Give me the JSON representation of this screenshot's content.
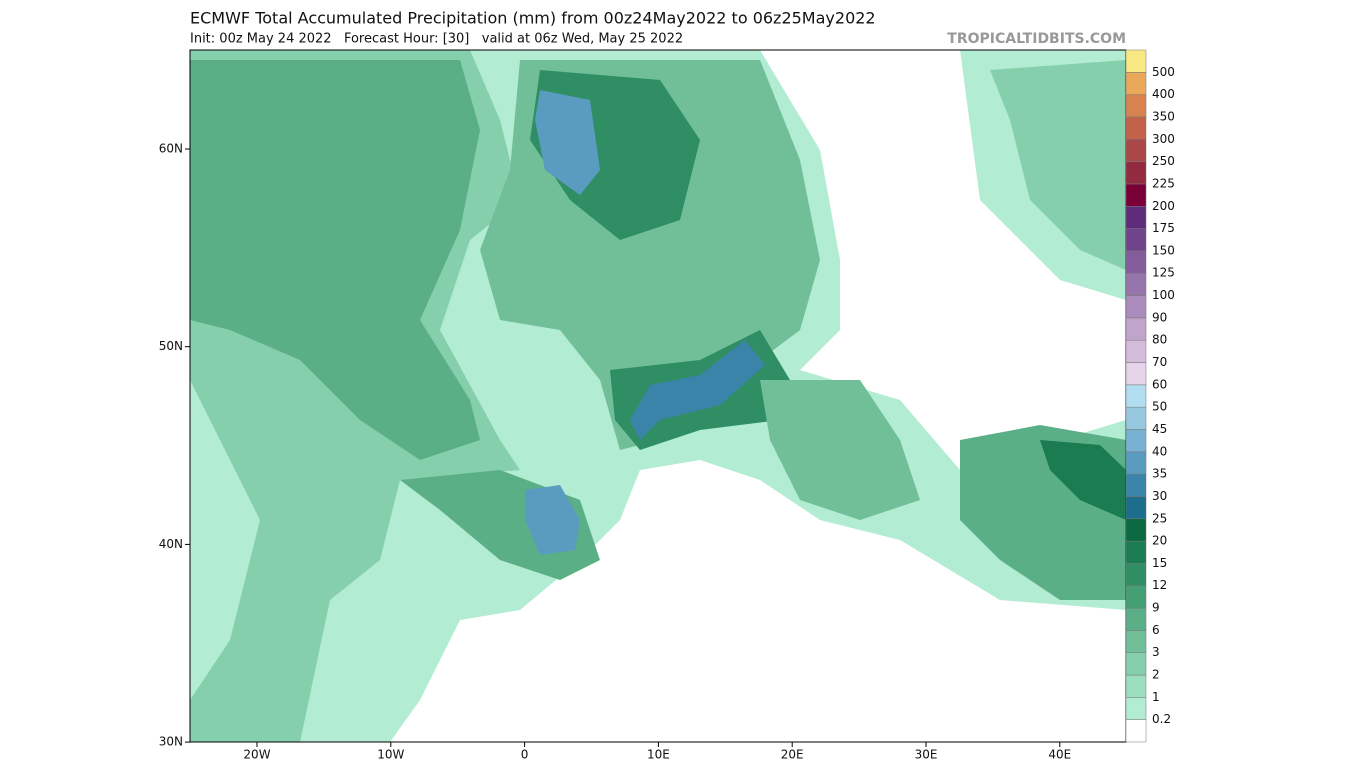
{
  "header": {
    "title": "ECMWF Total Accumulated Precipitation (mm) from 00z24May2022 to 06z25May2022",
    "subtitle": "Init: 00z May 24 2022   Forecast Hour: [30]   valid at 06z Wed, May 25 2022",
    "site": "TROPICALTIDBITS.COM"
  },
  "map": {
    "lat_labels": [
      "60N",
      "50N",
      "40N",
      "30N"
    ],
    "lon_labels": [
      "20W",
      "10W",
      "0",
      "10E",
      "20E",
      "30E",
      "40E"
    ]
  },
  "legend": {
    "levels": [
      "0.2",
      "1",
      "2",
      "3",
      "6",
      "9",
      "12",
      "15",
      "20",
      "25",
      "30",
      "35",
      "40",
      "45",
      "50",
      "60",
      "70",
      "80",
      "90",
      "100",
      "125",
      "150",
      "175",
      "200",
      "225",
      "250",
      "300",
      "350",
      "400",
      "500"
    ],
    "colors": [
      "#ffffff",
      "#b2ecd2",
      "#9cdfc0",
      "#86cfac",
      "#70bf99",
      "#5aaf87",
      "#449f75",
      "#2f8e63",
      "#1b7c52",
      "#0c6a43",
      "#1d6d8c",
      "#3a84aa",
      "#5a9cc0",
      "#78b2d2",
      "#98c8e0",
      "#b2dcf0",
      "#e6d4ea",
      "#d4bcdc",
      "#c0a4cc",
      "#ac8cbc",
      "#9874ac",
      "#845c9c",
      "#70448a",
      "#5e2c7a",
      "#7a0038",
      "#922a40",
      "#aa4848",
      "#c26248",
      "#d88250",
      "#eaa85a",
      "#f8e884"
    ]
  }
}
